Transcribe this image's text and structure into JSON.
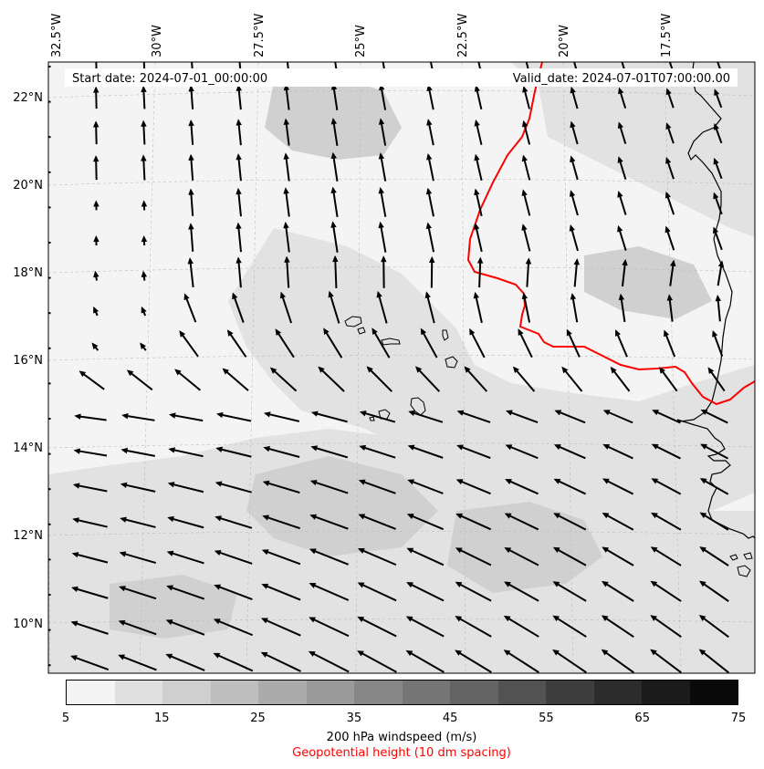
{
  "header": {
    "start_date": "Start date: 2024-07-01_00:00:00",
    "valid_date": "Valid_date: 2024-07-01T07:00:00.00"
  },
  "map": {
    "lon_labels": [
      "32.5°W",
      "30°W",
      "27.5°W",
      "25°W",
      "22.5°W",
      "20°W",
      "17.5°W"
    ],
    "lat_labels": [
      "22°N",
      "20°N",
      "18°N",
      "16°N",
      "14°N",
      "12°N",
      "10°N"
    ],
    "field_colors": {
      "calm": "#f4f4f4",
      "light": "#e2e2e2",
      "medium": "#d0d0d0"
    },
    "coast_color": "#000000",
    "contour_color": "#ff0000"
  },
  "colorbar": {
    "colors": [
      "#f4f4f4",
      "#e0e0e0",
      "#cfcfcf",
      "#bebebe",
      "#ababab",
      "#9a9a9a",
      "#878787",
      "#757575",
      "#646464",
      "#525252",
      "#3e3e3e",
      "#2c2c2c",
      "#1b1b1b",
      "#0a0a0a"
    ],
    "ticks": [
      "5",
      "15",
      "25",
      "35",
      "45",
      "55",
      "65",
      "75"
    ],
    "label": "200 hPa windspeed (m/s)",
    "contour_label": "Geopotential height (10 dm spacing)"
  }
}
